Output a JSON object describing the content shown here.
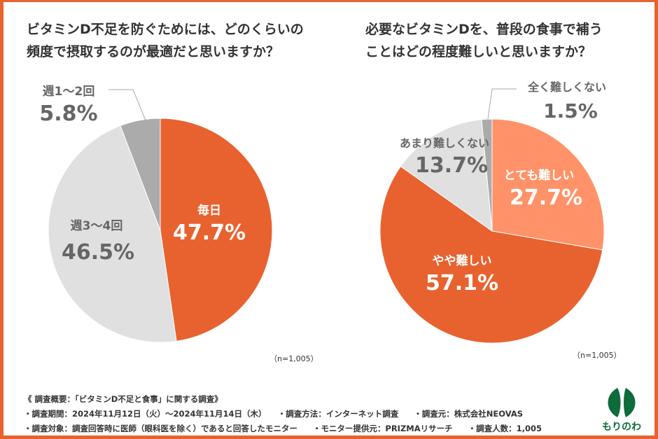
{
  "chart_data": [
    {
      "type": "pie",
      "title": "ビタミンD不足を防ぐためには、どのくらいの\n頻度で摂取するのが最適だと思いますか？",
      "note": "（n=1,005）",
      "slices": [
        {
          "label": "毎日",
          "value": 47.7,
          "display": "47.7%",
          "color": "#E8622F"
        },
        {
          "label": "週3〜4回",
          "value": 46.5,
          "display": "46.5%",
          "color": "#E0E0E0"
        },
        {
          "label": "週1〜2回",
          "value": 5.8,
          "display": "5.8%",
          "color": "#ABABAB"
        }
      ]
    },
    {
      "type": "pie",
      "title": "必要なビタミンDを、普段の食事で補う\nことはどの程度難しいと思いますか？",
      "note": "（n=1,005）",
      "slices": [
        {
          "label": "とても難しい",
          "value": 27.7,
          "display": "27.7%",
          "color": "#FF9268"
        },
        {
          "label": "やや難しい",
          "value": 57.1,
          "display": "57.1%",
          "color": "#E8622F"
        },
        {
          "label": "あまり難しくない",
          "value": 13.7,
          "display": "13.7%",
          "color": "#E0E0E0"
        },
        {
          "label": "全く難しくない",
          "value": 1.5,
          "display": "1.5%",
          "color": "#ABABAB"
        }
      ]
    }
  ],
  "footer": {
    "heading": "《 調査概要：「ビタミンD不足と食事」に関する調査》",
    "line1": [
      "・調査期間：2024年11月12日（火）〜2024年11月14日（木）",
      "・調査方法：インターネット調査",
      "・調査元：株式会社NEOVAS"
    ],
    "line2": [
      "・調査対象：調査回答時に医師（眼科医を除く）であると回答したモニター",
      "・モニター提供元：PRIZMAリサーチ",
      "・調査人数：1,005"
    ]
  },
  "logo": {
    "text": "もりのわ",
    "color": "#0E6B3B"
  },
  "accent": "#E8622F"
}
